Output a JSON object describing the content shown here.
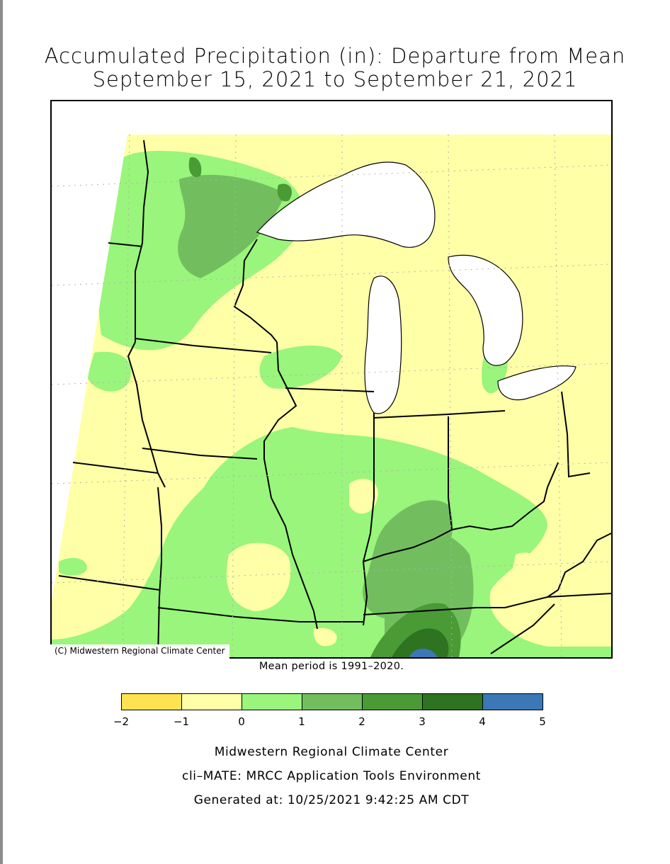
{
  "title": {
    "line1": "Accumulated Precipitation (in): Departure from Mean",
    "line2": "September 15, 2021 to September 21, 2021"
  },
  "map": {
    "credit": "(C) Midwestern Regional Climate Center",
    "colors": {
      "background": "#ffffa8",
      "class_m2_m1": "#ffe24f",
      "class_m1_0": "#ffffa8",
      "class_0_1": "#99f57b",
      "class_1_2": "#72be5f",
      "class_2_3": "#4a9a36",
      "class_3_4": "#2e7320",
      "class_4_5": "#3a78b6",
      "water": "#ffffff"
    }
  },
  "mean_note": "Mean period is 1991–2020.",
  "legend": {
    "colors": [
      "#ffe24f",
      "#ffffa8",
      "#99f57b",
      "#72be5f",
      "#4a9a36",
      "#2e7320",
      "#3a78b6"
    ],
    "ticks": [
      "−2",
      "−1",
      "0",
      "1",
      "2",
      "3",
      "4",
      "5"
    ]
  },
  "footer": {
    "line1": "Midwestern Regional Climate Center",
    "line2": "cli–MATE: MRCC Application Tools Environment",
    "line3": "Generated at: 10/25/2021 9:42:25 AM CDT"
  }
}
